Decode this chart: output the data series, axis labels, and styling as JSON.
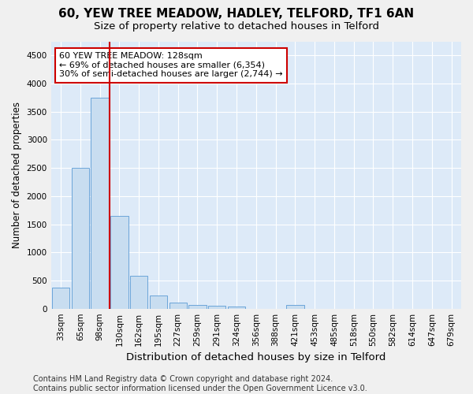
{
  "title": "60, YEW TREE MEADOW, HADLEY, TELFORD, TF1 6AN",
  "subtitle": "Size of property relative to detached houses in Telford",
  "xlabel": "Distribution of detached houses by size in Telford",
  "ylabel": "Number of detached properties",
  "bar_labels": [
    "33sqm",
    "65sqm",
    "98sqm",
    "130sqm",
    "162sqm",
    "195sqm",
    "227sqm",
    "259sqm",
    "291sqm",
    "324sqm",
    "356sqm",
    "388sqm",
    "421sqm",
    "453sqm",
    "485sqm",
    "518sqm",
    "550sqm",
    "582sqm",
    "614sqm",
    "647sqm",
    "679sqm"
  ],
  "bar_values": [
    370,
    2500,
    3750,
    1650,
    590,
    230,
    110,
    65,
    45,
    40,
    0,
    0,
    60,
    0,
    0,
    0,
    0,
    0,
    0,
    0,
    0
  ],
  "bar_color": "#c8ddf0",
  "bar_edgecolor": "#5b9bd5",
  "marker_color": "#cc0000",
  "annotation_line1": "60 YEW TREE MEADOW: 128sqm",
  "annotation_line2": "← 69% of detached houses are smaller (6,354)",
  "annotation_line3": "30% of semi-detached houses are larger (2,744) →",
  "annotation_box_color": "#ffffff",
  "annotation_box_edgecolor": "#cc0000",
  "ylim_max": 4750,
  "yticks": [
    0,
    500,
    1000,
    1500,
    2000,
    2500,
    3000,
    3500,
    4000,
    4500
  ],
  "footer_line1": "Contains HM Land Registry data © Crown copyright and database right 2024.",
  "footer_line2": "Contains public sector information licensed under the Open Government Licence v3.0.",
  "fig_facecolor": "#f0f0f0",
  "ax_facecolor": "#ddeaf8",
  "grid_color": "#ffffff",
  "title_fontsize": 11,
  "subtitle_fontsize": 9.5,
  "xlabel_fontsize": 9.5,
  "ylabel_fontsize": 8.5,
  "tick_fontsize": 7.5,
  "annotation_fontsize": 8,
  "footer_fontsize": 7
}
